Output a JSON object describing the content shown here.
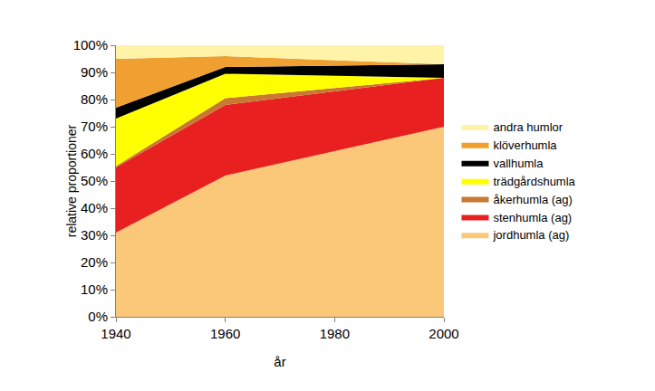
{
  "chart_data": {
    "type": "area",
    "stacked": true,
    "x_label": "år",
    "y_label": "relative proportioner",
    "x": [
      1940,
      1960,
      2000
    ],
    "xlim": [
      1940,
      2000
    ],
    "xticks": [
      1940,
      1960,
      1980,
      2000
    ],
    "ylim": [
      0,
      100
    ],
    "yticks": [
      {
        "value": 0,
        "label": "0%"
      },
      {
        "value": 10,
        "label": "10%"
      },
      {
        "value": 20,
        "label": "20%"
      },
      {
        "value": 30,
        "label": "30%"
      },
      {
        "value": 40,
        "label": "40%"
      },
      {
        "value": 50,
        "label": "50%"
      },
      {
        "value": 60,
        "label": "60%"
      },
      {
        "value": 70,
        "label": "70%"
      },
      {
        "value": 80,
        "label": "80%"
      },
      {
        "value": 90,
        "label": "90%"
      },
      {
        "value": 100,
        "label": "100%"
      }
    ],
    "grid": false,
    "legend": "right",
    "series": [
      {
        "name": "jordhumla (ag)",
        "color": "#fac878",
        "values": [
          31,
          52,
          70
        ]
      },
      {
        "name": "stenhumla (ag)",
        "color": "#e82020",
        "values": [
          24,
          26,
          18
        ]
      },
      {
        "name": "åkerhumla (ag)",
        "color": "#c87830",
        "values": [
          0.5,
          2.5,
          0
        ]
      },
      {
        "name": "trädgårdshumla",
        "color": "#ffff00",
        "values": [
          17.5,
          9,
          0
        ]
      },
      {
        "name": "vallhumla",
        "color": "#000000",
        "values": [
          4,
          2.5,
          5
        ]
      },
      {
        "name": "klöverhumla",
        "color": "#f0a030",
        "values": [
          18,
          4,
          0
        ]
      },
      {
        "name": "andra humlor",
        "color": "#fff3a8",
        "values": [
          5,
          4,
          7
        ]
      }
    ]
  }
}
